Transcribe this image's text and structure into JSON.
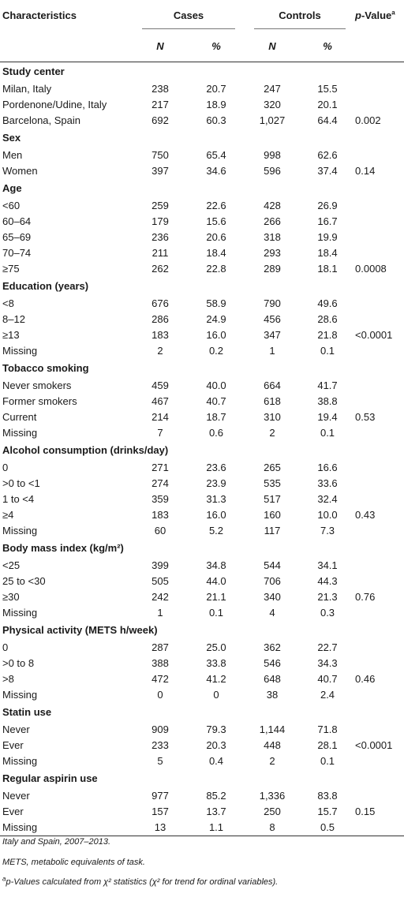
{
  "header": {
    "characteristics": "Characteristics",
    "cases": "Cases",
    "controls": "Controls",
    "pvalue": "p-Value",
    "pvalue_sup": "a",
    "n": "N",
    "pct": "%"
  },
  "sections": [
    {
      "title": "Study center",
      "rows": [
        {
          "label": "Milan, Italy",
          "cn": "238",
          "cp": "20.7",
          "kn": "247",
          "kp": "15.5",
          "p": ""
        },
        {
          "label": "Pordenone/Udine, Italy",
          "cn": "217",
          "cp": "18.9",
          "kn": "320",
          "kp": "20.1",
          "p": ""
        },
        {
          "label": "Barcelona, Spain",
          "cn": "692",
          "cp": "60.3",
          "kn": "1,027",
          "kp": "64.4",
          "p": "0.002"
        }
      ]
    },
    {
      "title": "Sex",
      "rows": [
        {
          "label": "Men",
          "cn": "750",
          "cp": "65.4",
          "kn": "998",
          "kp": "62.6",
          "p": ""
        },
        {
          "label": "Women",
          "cn": "397",
          "cp": "34.6",
          "kn": "596",
          "kp": "37.4",
          "p": "0.14"
        }
      ]
    },
    {
      "title": "Age",
      "rows": [
        {
          "label": "<60",
          "cn": "259",
          "cp": "22.6",
          "kn": "428",
          "kp": "26.9",
          "p": ""
        },
        {
          "label": "60–64",
          "cn": "179",
          "cp": "15.6",
          "kn": "266",
          "kp": "16.7",
          "p": ""
        },
        {
          "label": "65–69",
          "cn": "236",
          "cp": "20.6",
          "kn": "318",
          "kp": "19.9",
          "p": ""
        },
        {
          "label": "70–74",
          "cn": "211",
          "cp": "18.4",
          "kn": "293",
          "kp": "18.4",
          "p": ""
        },
        {
          "label": "≥75",
          "cn": "262",
          "cp": "22.8",
          "kn": "289",
          "kp": "18.1",
          "p": "0.0008"
        }
      ]
    },
    {
      "title": "Education (years)",
      "rows": [
        {
          "label": "<8",
          "cn": "676",
          "cp": "58.9",
          "kn": "790",
          "kp": "49.6",
          "p": ""
        },
        {
          "label": "8–12",
          "cn": "286",
          "cp": "24.9",
          "kn": "456",
          "kp": "28.6",
          "p": ""
        },
        {
          "label": "≥13",
          "cn": "183",
          "cp": "16.0",
          "kn": "347",
          "kp": "21.8",
          "p": "<0.0001"
        },
        {
          "label": "Missing",
          "cn": "2",
          "cp": "0.2",
          "kn": "1",
          "kp": "0.1",
          "p": ""
        }
      ]
    },
    {
      "title": "Tobacco smoking",
      "rows": [
        {
          "label": "Never smokers",
          "cn": "459",
          "cp": "40.0",
          "kn": "664",
          "kp": "41.7",
          "p": ""
        },
        {
          "label": "Former smokers",
          "cn": "467",
          "cp": "40.7",
          "kn": "618",
          "kp": "38.8",
          "p": ""
        },
        {
          "label": "Current",
          "cn": "214",
          "cp": "18.7",
          "kn": "310",
          "kp": "19.4",
          "p": "0.53"
        },
        {
          "label": "Missing",
          "cn": "7",
          "cp": "0.6",
          "kn": "2",
          "kp": "0.1",
          "p": ""
        }
      ]
    },
    {
      "title": "Alcohol consumption (drinks/day)",
      "rows": [
        {
          "label": "0",
          "cn": "271",
          "cp": "23.6",
          "kn": "265",
          "kp": "16.6",
          "p": ""
        },
        {
          "label": ">0 to <1",
          "cn": "274",
          "cp": "23.9",
          "kn": "535",
          "kp": "33.6",
          "p": ""
        },
        {
          "label": "1 to <4",
          "cn": "359",
          "cp": "31.3",
          "kn": "517",
          "kp": "32.4",
          "p": ""
        },
        {
          "label": "≥4",
          "cn": "183",
          "cp": "16.0",
          "kn": "160",
          "kp": "10.0",
          "p": "0.43"
        },
        {
          "label": "Missing",
          "cn": "60",
          "cp": "5.2",
          "kn": "117",
          "kp": "7.3",
          "p": ""
        }
      ]
    },
    {
      "title": "Body mass index (kg/m²)",
      "rows": [
        {
          "label": "<25",
          "cn": "399",
          "cp": "34.8",
          "kn": "544",
          "kp": "34.1",
          "p": ""
        },
        {
          "label": "25 to <30",
          "cn": "505",
          "cp": "44.0",
          "kn": "706",
          "kp": "44.3",
          "p": ""
        },
        {
          "label": "≥30",
          "cn": "242",
          "cp": "21.1",
          "kn": "340",
          "kp": "21.3",
          "p": "0.76"
        },
        {
          "label": "Missing",
          "cn": "1",
          "cp": "0.1",
          "kn": "4",
          "kp": "0.3",
          "p": ""
        }
      ]
    },
    {
      "title": "Physical activity (METS h/week)",
      "rows": [
        {
          "label": "0",
          "cn": "287",
          "cp": "25.0",
          "kn": "362",
          "kp": "22.7",
          "p": ""
        },
        {
          "label": ">0 to 8",
          "cn": "388",
          "cp": "33.8",
          "kn": "546",
          "kp": "34.3",
          "p": ""
        },
        {
          "label": ">8",
          "cn": "472",
          "cp": "41.2",
          "kn": "648",
          "kp": "40.7",
          "p": "0.46"
        },
        {
          "label": "Missing",
          "cn": "0",
          "cp": "0",
          "kn": "38",
          "kp": "2.4",
          "p": ""
        }
      ]
    },
    {
      "title": "Statin use",
      "rows": [
        {
          "label": "Never",
          "cn": "909",
          "cp": "79.3",
          "kn": "1,144",
          "kp": "71.8",
          "p": ""
        },
        {
          "label": "Ever",
          "cn": "233",
          "cp": "20.3",
          "kn": "448",
          "kp": "28.1",
          "p": "<0.0001"
        },
        {
          "label": "Missing",
          "cn": "5",
          "cp": "0.4",
          "kn": "2",
          "kp": "0.1",
          "p": ""
        }
      ]
    },
    {
      "title": "Regular aspirin use",
      "rows": [
        {
          "label": "Never",
          "cn": "977",
          "cp": "85.2",
          "kn": "1,336",
          "kp": "83.8",
          "p": ""
        },
        {
          "label": "Ever",
          "cn": "157",
          "cp": "13.7",
          "kn": "250",
          "kp": "15.7",
          "p": "0.15"
        },
        {
          "label": "Missing",
          "cn": "13",
          "cp": "1.1",
          "kn": "8",
          "kp": "0.5",
          "p": ""
        }
      ]
    }
  ],
  "footnotes": {
    "note1": "Italy and Spain, 2007–2013.",
    "note2": "METS, metabolic equivalents of task.",
    "note3_sup": "a",
    "note3": "p-Values calculated from χ² statistics (χ² for trend for ordinal variables)."
  }
}
